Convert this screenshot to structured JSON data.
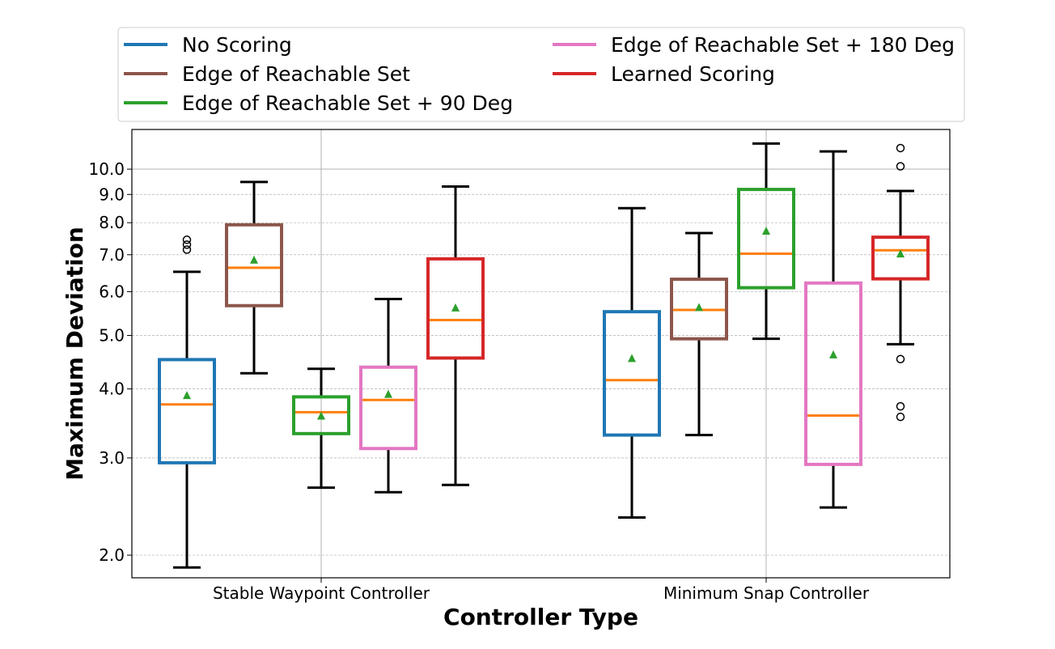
{
  "chart_data": {
    "type": "boxplot",
    "xlabel": "Controller Type",
    "ylabel": "Maximum Deviation",
    "yscale": "log",
    "ylim": [
      1.82,
      11.8
    ],
    "yticks": [
      2.0,
      3.0,
      4.0,
      5.0,
      6.0,
      7.0,
      8.0,
      9.0,
      10.0
    ],
    "ytick_labels": [
      "2.0",
      "3.0",
      "4.0",
      "5.0",
      "6.0",
      "7.0",
      "8.0",
      "9.0",
      "10.0"
    ],
    "categories": [
      "Stable Waypoint Controller",
      "Minimum Snap Controller"
    ],
    "grid": "on",
    "legend_position": "top",
    "mean_marker_color": "#2ca02c",
    "median_color": "#ff7f0e",
    "series": [
      {
        "name": "No Scoring",
        "color": "#1f77b4",
        "boxes": [
          {
            "whislo": 1.9,
            "q1": 2.94,
            "med": 3.75,
            "q3": 4.52,
            "whishi": 6.52,
            "mean": 3.9,
            "fliers": [
              7.15,
              7.3,
              7.45
            ]
          },
          {
            "whislo": 2.34,
            "q1": 3.3,
            "med": 4.15,
            "q3": 5.52,
            "whishi": 8.5,
            "mean": 4.55,
            "fliers": []
          }
        ]
      },
      {
        "name": "Edge of Reachable Set",
        "color": "#8c564b",
        "boxes": [
          {
            "whislo": 4.27,
            "q1": 5.66,
            "med": 6.63,
            "q3": 7.93,
            "whishi": 9.48,
            "mean": 6.86,
            "fliers": []
          },
          {
            "whislo": 3.3,
            "q1": 4.93,
            "med": 5.56,
            "q3": 6.32,
            "whishi": 7.66,
            "mean": 5.63,
            "fliers": []
          }
        ]
      },
      {
        "name": "Edge of Reachable Set + 90 Deg",
        "color": "#2ca02c",
        "boxes": [
          {
            "whislo": 2.65,
            "q1": 3.32,
            "med": 3.63,
            "q3": 3.87,
            "whishi": 4.35,
            "mean": 3.58,
            "fliers": []
          },
          {
            "whislo": 4.93,
            "q1": 6.1,
            "med": 7.03,
            "q3": 9.19,
            "whishi": 11.13,
            "mean": 7.74,
            "fliers": []
          }
        ]
      },
      {
        "name": "Edge of Reachable Set + 180 Deg",
        "color": "#e377c2",
        "boxes": [
          {
            "whislo": 2.6,
            "q1": 3.12,
            "med": 3.82,
            "q3": 4.38,
            "whishi": 5.82,
            "mean": 3.92,
            "fliers": []
          },
          {
            "whislo": 2.44,
            "q1": 2.92,
            "med": 3.58,
            "q3": 6.22,
            "whishi": 10.77,
            "mean": 4.62,
            "fliers": []
          }
        ]
      },
      {
        "name": "Learned Scoring",
        "color": "#d62728",
        "boxes": [
          {
            "whislo": 2.68,
            "q1": 4.55,
            "med": 5.33,
            "q3": 6.88,
            "whishi": 9.3,
            "mean": 5.62,
            "fliers": []
          },
          {
            "whislo": 4.82,
            "q1": 6.33,
            "med": 7.13,
            "q3": 7.53,
            "whishi": 9.13,
            "mean": 7.04,
            "fliers": [
              3.56,
              3.72,
              4.53,
              10.12,
              10.92
            ]
          }
        ]
      }
    ]
  }
}
